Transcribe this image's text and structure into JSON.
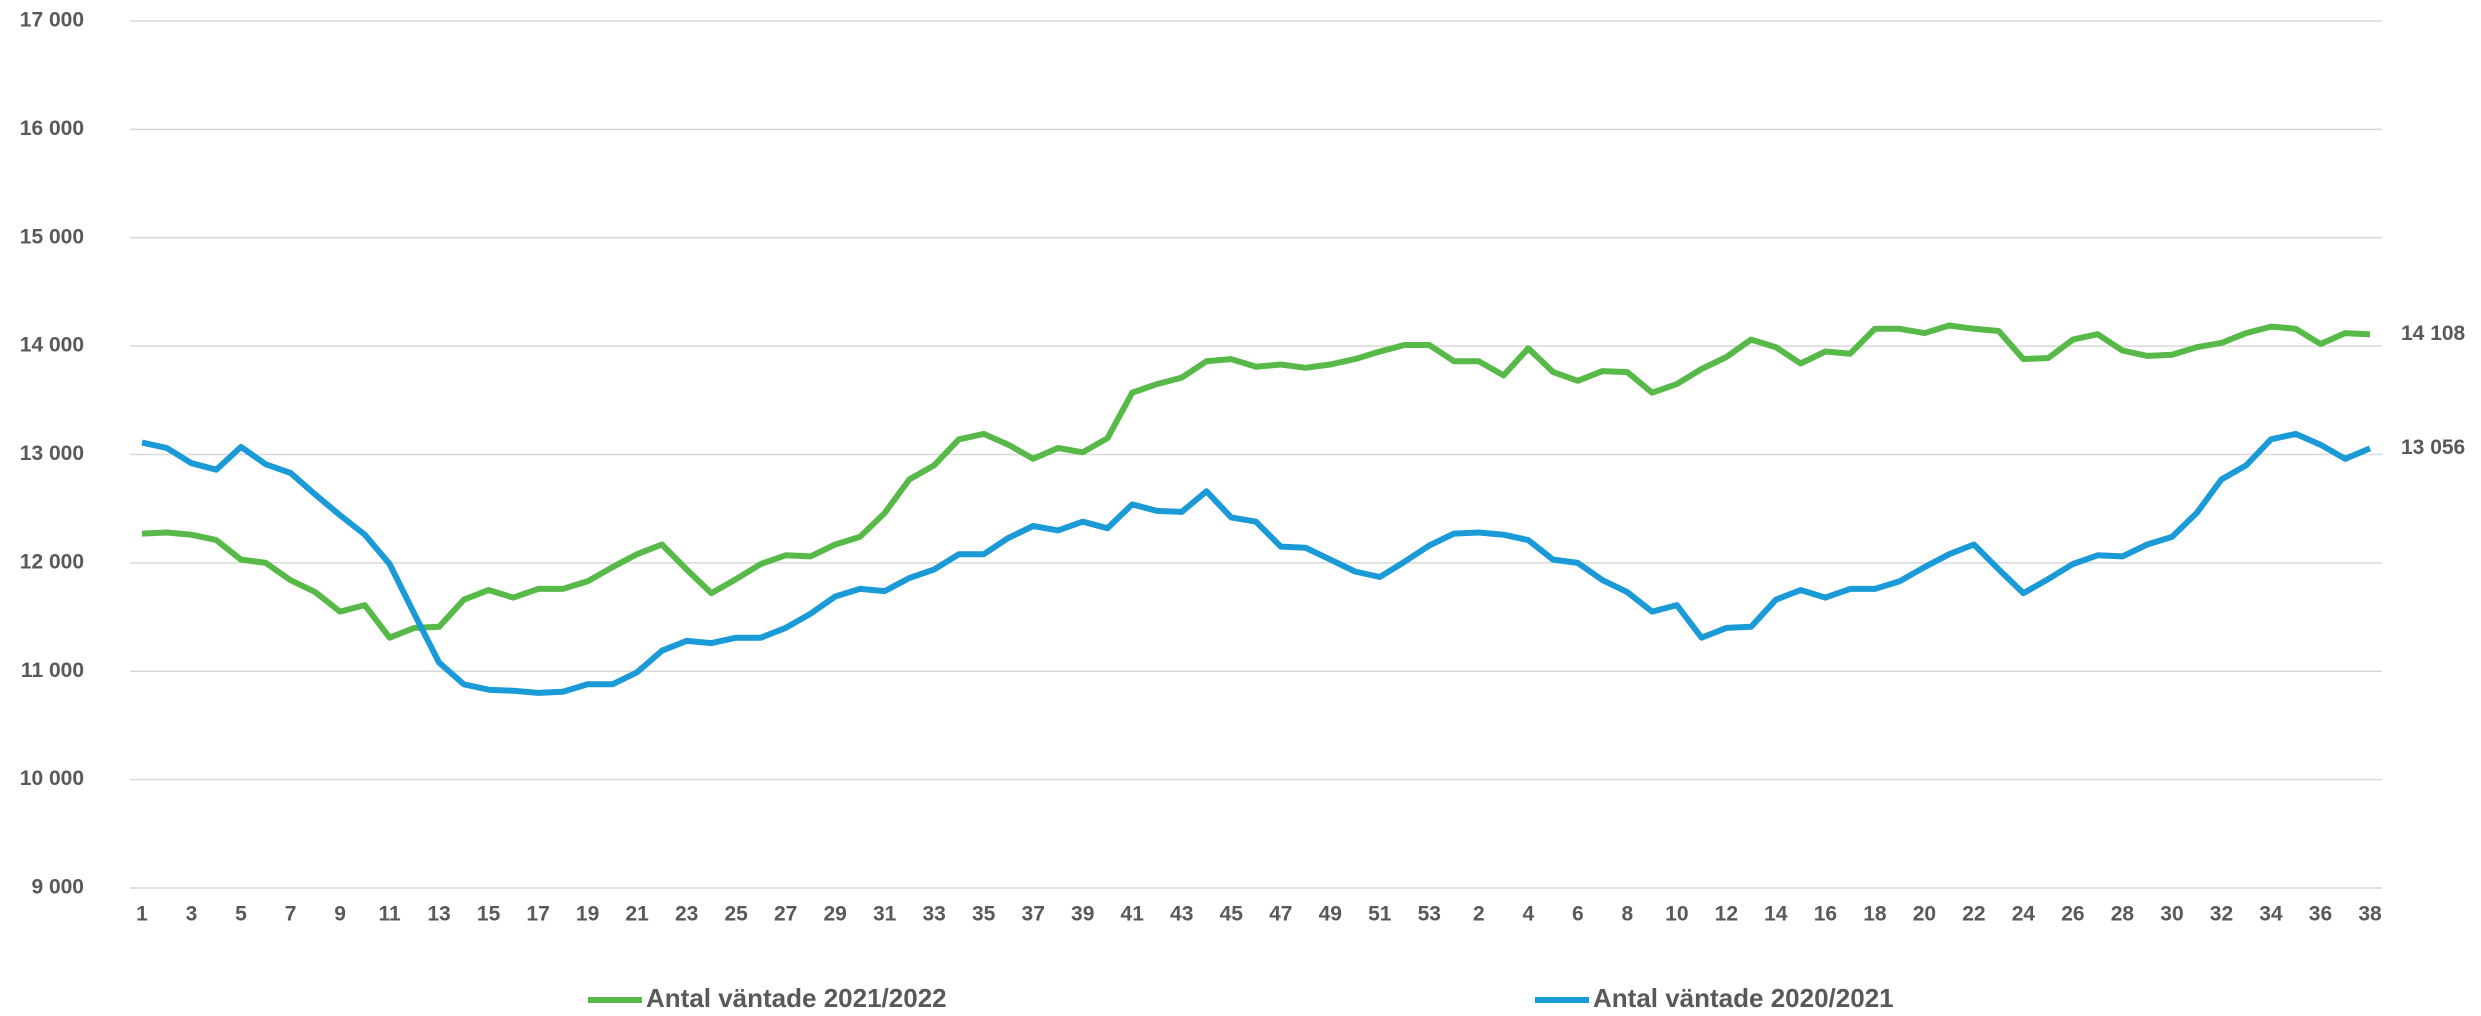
{
  "chart_data": {
    "type": "line",
    "categories": [
      "1",
      null,
      "3",
      null,
      "5",
      null,
      "7",
      null,
      "9",
      null,
      "11",
      null,
      "13",
      null,
      "15",
      null,
      "17",
      null,
      "19",
      null,
      "21",
      null,
      "23",
      null,
      "25",
      null,
      "27",
      null,
      "29",
      null,
      "31",
      null,
      "33",
      null,
      "35",
      null,
      "37",
      null,
      "39",
      null,
      "41",
      null,
      "43",
      null,
      "45",
      null,
      "47",
      null,
      "49",
      null,
      "51",
      null,
      "53",
      null,
      "2",
      null,
      "4",
      null,
      "6",
      null,
      "8",
      null,
      "10",
      null,
      "12",
      null,
      "14",
      null,
      "16",
      null,
      "18",
      null,
      "20",
      null,
      "22",
      null,
      "24",
      null,
      "26",
      null,
      "28",
      null,
      "30",
      null,
      "32",
      null,
      "34",
      null,
      "36",
      null,
      "38"
    ],
    "series": [
      {
        "name": "Antal väntade 2021/2022",
        "color": "#57b947",
        "values": [
          12270,
          12280,
          12260,
          12210,
          12030,
          12000,
          11840,
          11730,
          11550,
          11610,
          11310,
          11400,
          11410,
          11660,
          11750,
          11680,
          11760,
          11760,
          11830,
          11960,
          12080,
          12170,
          11940,
          11720,
          11850,
          11990,
          12070,
          12060,
          12170,
          12240,
          12460,
          12770,
          12900,
          13140,
          13190,
          13090,
          12960,
          13060,
          13020,
          13150,
          13570,
          13650,
          13710,
          13860,
          13880,
          13810,
          13830,
          13800,
          13830,
          13880,
          13950,
          14010,
          14010,
          13860,
          13860,
          13730,
          13980,
          13760,
          13680,
          13770,
          13760,
          13570,
          13650,
          13790,
          13900,
          14060,
          13990,
          13840,
          13950,
          13930,
          14160,
          14160,
          14120,
          14190,
          14160,
          14140,
          13880,
          13890,
          14060,
          14110,
          13960,
          13910,
          13920,
          13990,
          14030,
          14120,
          14180,
          14160,
          14020,
          14120,
          14108
        ],
        "value_labels": [
          null,
          null,
          null,
          null,
          null,
          null,
          null,
          null,
          null,
          null,
          null,
          null,
          null,
          null,
          null,
          null,
          null,
          null,
          null,
          null,
          null,
          null,
          null,
          null,
          null,
          null,
          null,
          null,
          null,
          null,
          null,
          null,
          null,
          null,
          null,
          null,
          null,
          null,
          null,
          null,
          null,
          null,
          null,
          null,
          null,
          null,
          null,
          null,
          null,
          null,
          null,
          null,
          null,
          null,
          null,
          null,
          null,
          null,
          null,
          null,
          null,
          null,
          null,
          null,
          null,
          null,
          null,
          null,
          null,
          null,
          null,
          null,
          null,
          null,
          null,
          null,
          null,
          null,
          null,
          null,
          null,
          null,
          null,
          null,
          null,
          null,
          null,
          null,
          null,
          null,
          "14 108"
        ]
      },
      {
        "name": "Antal väntade 2020/2021",
        "color": "#1a9ad6",
        "values": [
          13110,
          13060,
          12920,
          12860,
          13070,
          12910,
          12830,
          12630,
          12440,
          12260,
          11990,
          11530,
          11080,
          10880,
          10830,
          10820,
          10800,
          10810,
          10880,
          10880,
          10990,
          11190,
          11280,
          11260,
          11310,
          11310,
          11400,
          11530,
          11690,
          11760,
          11740,
          11860,
          11940,
          12080,
          12080,
          12230,
          12340,
          12300,
          12380,
          12320,
          12540,
          12480,
          12470,
          12660,
          12420,
          12380,
          12150,
          12140,
          12030,
          11920,
          11870,
          12010,
          12160,
          12270,
          12280,
          12260,
          12210,
          12030,
          12000,
          11840,
          11730,
          11550,
          11610,
          11310,
          11400,
          11410,
          11660,
          11750,
          11680,
          11760,
          11760,
          11830,
          11960,
          12080,
          12170,
          11940,
          11720,
          11850,
          11990,
          12070,
          12060,
          12170,
          12240,
          12460,
          12770,
          12900,
          13140,
          13190,
          13090,
          12960,
          13056
        ],
        "value_labels": [
          null,
          null,
          null,
          null,
          null,
          null,
          null,
          null,
          null,
          null,
          null,
          null,
          null,
          null,
          null,
          null,
          null,
          null,
          null,
          null,
          null,
          null,
          null,
          null,
          null,
          null,
          null,
          null,
          null,
          null,
          null,
          null,
          null,
          null,
          null,
          null,
          null,
          null,
          null,
          null,
          null,
          null,
          null,
          null,
          null,
          null,
          null,
          null,
          null,
          null,
          null,
          null,
          null,
          null,
          null,
          null,
          null,
          null,
          null,
          null,
          null,
          null,
          null,
          null,
          null,
          null,
          null,
          null,
          null,
          null,
          null,
          null,
          null,
          null,
          null,
          null,
          null,
          null,
          null,
          null,
          null,
          null,
          null,
          null,
          null,
          null,
          null,
          null,
          null,
          null,
          "13 056"
        ]
      }
    ],
    "ylim": [
      9000,
      17000
    ],
    "yticks": [
      {
        "value": 9000,
        "label": "9 000"
      },
      {
        "value": 10000,
        "label": "10 000"
      },
      {
        "value": 11000,
        "label": "11 000"
      },
      {
        "value": 12000,
        "label": "12 000"
      },
      {
        "value": 13000,
        "label": "13 000"
      },
      {
        "value": 14000,
        "label": "14 000"
      },
      {
        "value": 15000,
        "label": "15 000"
      },
      {
        "value": 16000,
        "label": "16 000"
      },
      {
        "value": 17000,
        "label": "17 000"
      }
    ],
    "grid": true,
    "legend": "bottom"
  }
}
